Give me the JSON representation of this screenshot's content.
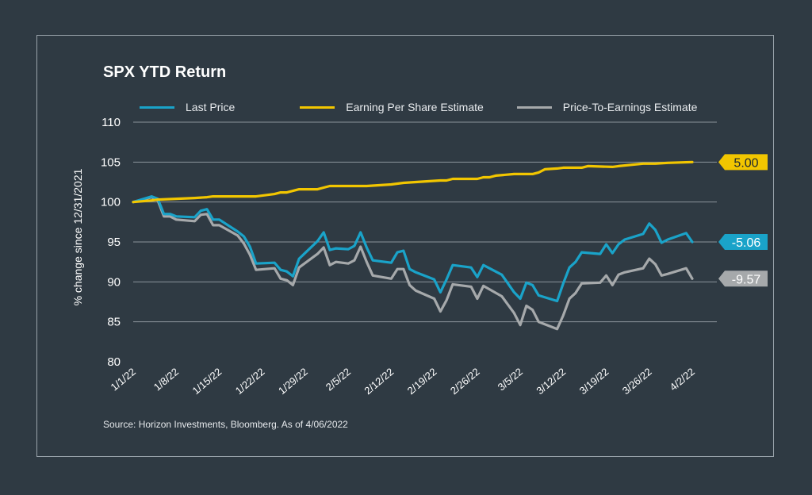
{
  "chart_data": {
    "type": "line",
    "title": "SPX YTD Return",
    "xlabel": "",
    "ylabel": "% change since 12/31/2021",
    "ylim": [
      80,
      110
    ],
    "yticks": [
      80,
      85,
      90,
      95,
      100,
      105,
      110
    ],
    "grid": true,
    "legend_position": "top",
    "xticks": [
      "1/1/22",
      "1/8/22",
      "1/15/22",
      "1/22/22",
      "1/29/22",
      "2/5/22",
      "2/12/22",
      "2/19/22",
      "2/26/22",
      "3/5/22",
      "3/12/22",
      "3/19/22",
      "3/26/22",
      "4/2/22"
    ],
    "x_range_days": [
      0,
      95
    ],
    "series": [
      {
        "name": "Last Price",
        "color": "#1aa3c9",
        "end_label": "-5.06",
        "points": [
          [
            0,
            100
          ],
          [
            3,
            100.7
          ],
          [
            4,
            100.4
          ],
          [
            5,
            98.5
          ],
          [
            6,
            98.5
          ],
          [
            7,
            98.2
          ],
          [
            10,
            98.1
          ],
          [
            11,
            98.9
          ],
          [
            12,
            99.1
          ],
          [
            13,
            97.8
          ],
          [
            14,
            97.8
          ],
          [
            17,
            96.3
          ],
          [
            18,
            95.7
          ],
          [
            19,
            94.4
          ],
          [
            20,
            92.3
          ],
          [
            23,
            92.4
          ],
          [
            24,
            91.5
          ],
          [
            25,
            91.3
          ],
          [
            26,
            90.7
          ],
          [
            27,
            92.9
          ],
          [
            30,
            95.1
          ],
          [
            31,
            96.2
          ],
          [
            32,
            94.0
          ],
          [
            33,
            94.2
          ],
          [
            35,
            94.1
          ],
          [
            36,
            94.5
          ],
          [
            37,
            96.2
          ],
          [
            38,
            94.3
          ],
          [
            39,
            92.7
          ],
          [
            42,
            92.4
          ],
          [
            43,
            93.7
          ],
          [
            44,
            93.9
          ],
          [
            45,
            91.6
          ],
          [
            46,
            91.2
          ],
          [
            49,
            90.3
          ],
          [
            50,
            88.7
          ],
          [
            51,
            90.3
          ],
          [
            52,
            92.1
          ],
          [
            55,
            91.8
          ],
          [
            56,
            90.6
          ],
          [
            57,
            92.1
          ],
          [
            60,
            90.9
          ],
          [
            62,
            88.7
          ],
          [
            63,
            87.9
          ],
          [
            64,
            89.9
          ],
          [
            65,
            89.6
          ],
          [
            66,
            88.3
          ],
          [
            69,
            87.6
          ],
          [
            70,
            89.8
          ],
          [
            71,
            91.8
          ],
          [
            72,
            92.5
          ],
          [
            73,
            93.7
          ],
          [
            76,
            93.5
          ],
          [
            77,
            94.7
          ],
          [
            78,
            93.6
          ],
          [
            79,
            94.7
          ],
          [
            80,
            95.3
          ],
          [
            83,
            96.0
          ],
          [
            84,
            97.3
          ],
          [
            85,
            96.5
          ],
          [
            86,
            94.9
          ],
          [
            87,
            95.3
          ],
          [
            90,
            96.1
          ],
          [
            91,
            95.0
          ]
        ]
      },
      {
        "name": "Earning Per Share Estimate",
        "color": "#f2c600",
        "end_label": "5.00",
        "points": [
          [
            0,
            100
          ],
          [
            3,
            100.2
          ],
          [
            4,
            100.3
          ],
          [
            7,
            100.4
          ],
          [
            10,
            100.5
          ],
          [
            12,
            100.6
          ],
          [
            13,
            100.7
          ],
          [
            20,
            100.7
          ],
          [
            23,
            101.0
          ],
          [
            24,
            101.2
          ],
          [
            25,
            101.2
          ],
          [
            26,
            101.4
          ],
          [
            27,
            101.6
          ],
          [
            30,
            101.6
          ],
          [
            31,
            101.8
          ],
          [
            32,
            102.0
          ],
          [
            38,
            102.0
          ],
          [
            40,
            102.1
          ],
          [
            42,
            102.2
          ],
          [
            44,
            102.4
          ],
          [
            46,
            102.5
          ],
          [
            48,
            102.6
          ],
          [
            50,
            102.7
          ],
          [
            51,
            102.7
          ],
          [
            52,
            102.9
          ],
          [
            56,
            102.9
          ],
          [
            57,
            103.1
          ],
          [
            58,
            103.1
          ],
          [
            59,
            103.3
          ],
          [
            62,
            103.5
          ],
          [
            65,
            103.5
          ],
          [
            66,
            103.7
          ],
          [
            67,
            104.1
          ],
          [
            69,
            104.2
          ],
          [
            70,
            104.3
          ],
          [
            73,
            104.3
          ],
          [
            74,
            104.5
          ],
          [
            78,
            104.4
          ],
          [
            79,
            104.5
          ],
          [
            83,
            104.8
          ],
          [
            85,
            104.8
          ],
          [
            87,
            104.9
          ],
          [
            91,
            105.0
          ]
        ]
      },
      {
        "name": "Price-To-Earnings Estimate",
        "color": "#a6a9ab",
        "end_label": "-9.57",
        "points": [
          [
            0,
            100
          ],
          [
            3,
            100.6
          ],
          [
            4,
            100.2
          ],
          [
            5,
            98.2
          ],
          [
            6,
            98.2
          ],
          [
            7,
            97.8
          ],
          [
            10,
            97.6
          ],
          [
            11,
            98.4
          ],
          [
            12,
            98.5
          ],
          [
            13,
            97.1
          ],
          [
            14,
            97.1
          ],
          [
            17,
            95.8
          ],
          [
            18,
            94.8
          ],
          [
            19,
            93.4
          ],
          [
            20,
            91.5
          ],
          [
            23,
            91.7
          ],
          [
            24,
            90.4
          ],
          [
            25,
            90.2
          ],
          [
            26,
            89.6
          ],
          [
            27,
            91.8
          ],
          [
            30,
            93.5
          ],
          [
            31,
            94.3
          ],
          [
            32,
            92.1
          ],
          [
            33,
            92.5
          ],
          [
            35,
            92.3
          ],
          [
            36,
            92.7
          ],
          [
            37,
            94.4
          ],
          [
            38,
            92.5
          ],
          [
            39,
            90.8
          ],
          [
            42,
            90.4
          ],
          [
            43,
            91.6
          ],
          [
            44,
            91.6
          ],
          [
            45,
            89.6
          ],
          [
            46,
            88.9
          ],
          [
            49,
            87.9
          ],
          [
            50,
            86.3
          ],
          [
            51,
            87.7
          ],
          [
            52,
            89.7
          ],
          [
            55,
            89.4
          ],
          [
            56,
            87.9
          ],
          [
            57,
            89.5
          ],
          [
            60,
            88.2
          ],
          [
            62,
            86.1
          ],
          [
            63,
            84.6
          ],
          [
            64,
            87.0
          ],
          [
            65,
            86.5
          ],
          [
            66,
            85.0
          ],
          [
            69,
            84.1
          ],
          [
            70,
            85.8
          ],
          [
            71,
            87.9
          ],
          [
            72,
            88.6
          ],
          [
            73,
            89.8
          ],
          [
            76,
            89.9
          ],
          [
            77,
            90.8
          ],
          [
            78,
            89.6
          ],
          [
            79,
            90.9
          ],
          [
            80,
            91.2
          ],
          [
            83,
            91.7
          ],
          [
            84,
            92.9
          ],
          [
            85,
            92.2
          ],
          [
            86,
            90.8
          ],
          [
            87,
            91.0
          ],
          [
            90,
            91.7
          ],
          [
            91,
            90.4
          ]
        ]
      }
    ],
    "source": "Source: Horizon Investments, Bloomberg. As of 4/06/2022"
  }
}
